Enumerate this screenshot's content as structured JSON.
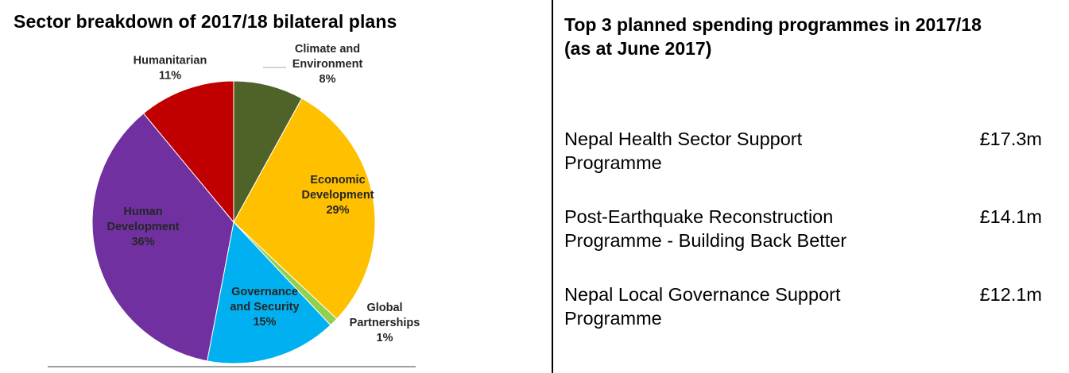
{
  "left_title": "Sector breakdown of 2017/18 bilateral plans",
  "right_title": "Top 3 planned spending programmes in 2017/18 (as at June 2017)",
  "chart_data": {
    "type": "pie",
    "title": "Sector breakdown of 2017/18 bilateral plans",
    "slices": [
      {
        "name": "Climate and Environment",
        "label_lines": [
          "Climate and",
          "Environment",
          "8%"
        ],
        "value": 8,
        "color": "#4F6228"
      },
      {
        "name": "Economic Development",
        "label_lines": [
          "Economic",
          "Development",
          "29%"
        ],
        "value": 29,
        "color": "#FFC000"
      },
      {
        "name": "Global Partnerships",
        "label_lines": [
          "Global",
          "Partnerships",
          "1%"
        ],
        "value": 1,
        "color": "#92D050"
      },
      {
        "name": "Governance and Security",
        "label_lines": [
          "Governance",
          "and Security",
          "15%"
        ],
        "value": 15,
        "color": "#00B0F0"
      },
      {
        "name": "Human Development",
        "label_lines": [
          "Human",
          "Development",
          "36%"
        ],
        "value": 36,
        "color": "#7030A0"
      },
      {
        "name": "Humanitarian",
        "label_lines": [
          "Humanitarian",
          "11%"
        ],
        "value": 11,
        "color": "#C00000"
      }
    ]
  },
  "programmes": [
    {
      "name": "Nepal Health Sector Support Programme",
      "amount": "£17.3m"
    },
    {
      "name": "Post-Earthquake Reconstruction Programme - Building Back Better",
      "amount": "£14.1m"
    },
    {
      "name": "Nepal Local Governance Support Programme",
      "amount": "£12.1m"
    }
  ]
}
